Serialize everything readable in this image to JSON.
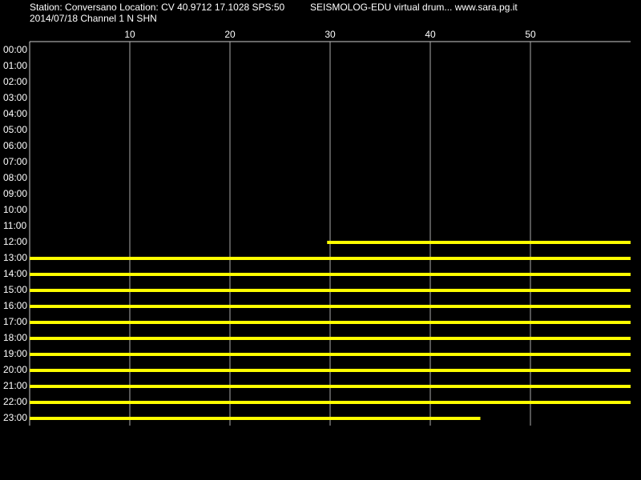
{
  "chart_data": {
    "type": "drum",
    "title": "Station: Conversano Location: CV 40.9712 17.1028 SPS:50",
    "subtitle": "SEISMOLOG-EDU virtual drum... www.sara.pg.it",
    "channel": "2014/07/18  Channel 1 N SHN",
    "categories": [
      "00:00",
      "01:00",
      "02:00",
      "03:00",
      "04:00",
      "05:00",
      "06:00",
      "07:00",
      "08:00",
      "09:00",
      "10:00",
      "11:00",
      "12:00",
      "13:00",
      "14:00",
      "15:00",
      "16:00",
      "17:00",
      "18:00",
      "19:00",
      "20:00",
      "21:00",
      "22:00",
      "23:00"
    ],
    "trace_start": [
      null,
      null,
      null,
      null,
      null,
      null,
      null,
      null,
      null,
      null,
      null,
      null,
      29.7,
      0,
      0,
      0,
      0,
      0,
      0,
      0,
      0,
      0,
      0,
      0
    ],
    "trace_end": [
      null,
      null,
      null,
      null,
      null,
      null,
      null,
      null,
      null,
      null,
      null,
      null,
      60,
      60,
      60,
      60,
      60,
      60,
      60,
      60,
      60,
      60,
      60,
      45
    ],
    "color": "#ffff00",
    "xlim": [
      0,
      60
    ],
    "xticks": [
      10,
      20,
      30,
      40,
      50
    ],
    "grid": true
  }
}
